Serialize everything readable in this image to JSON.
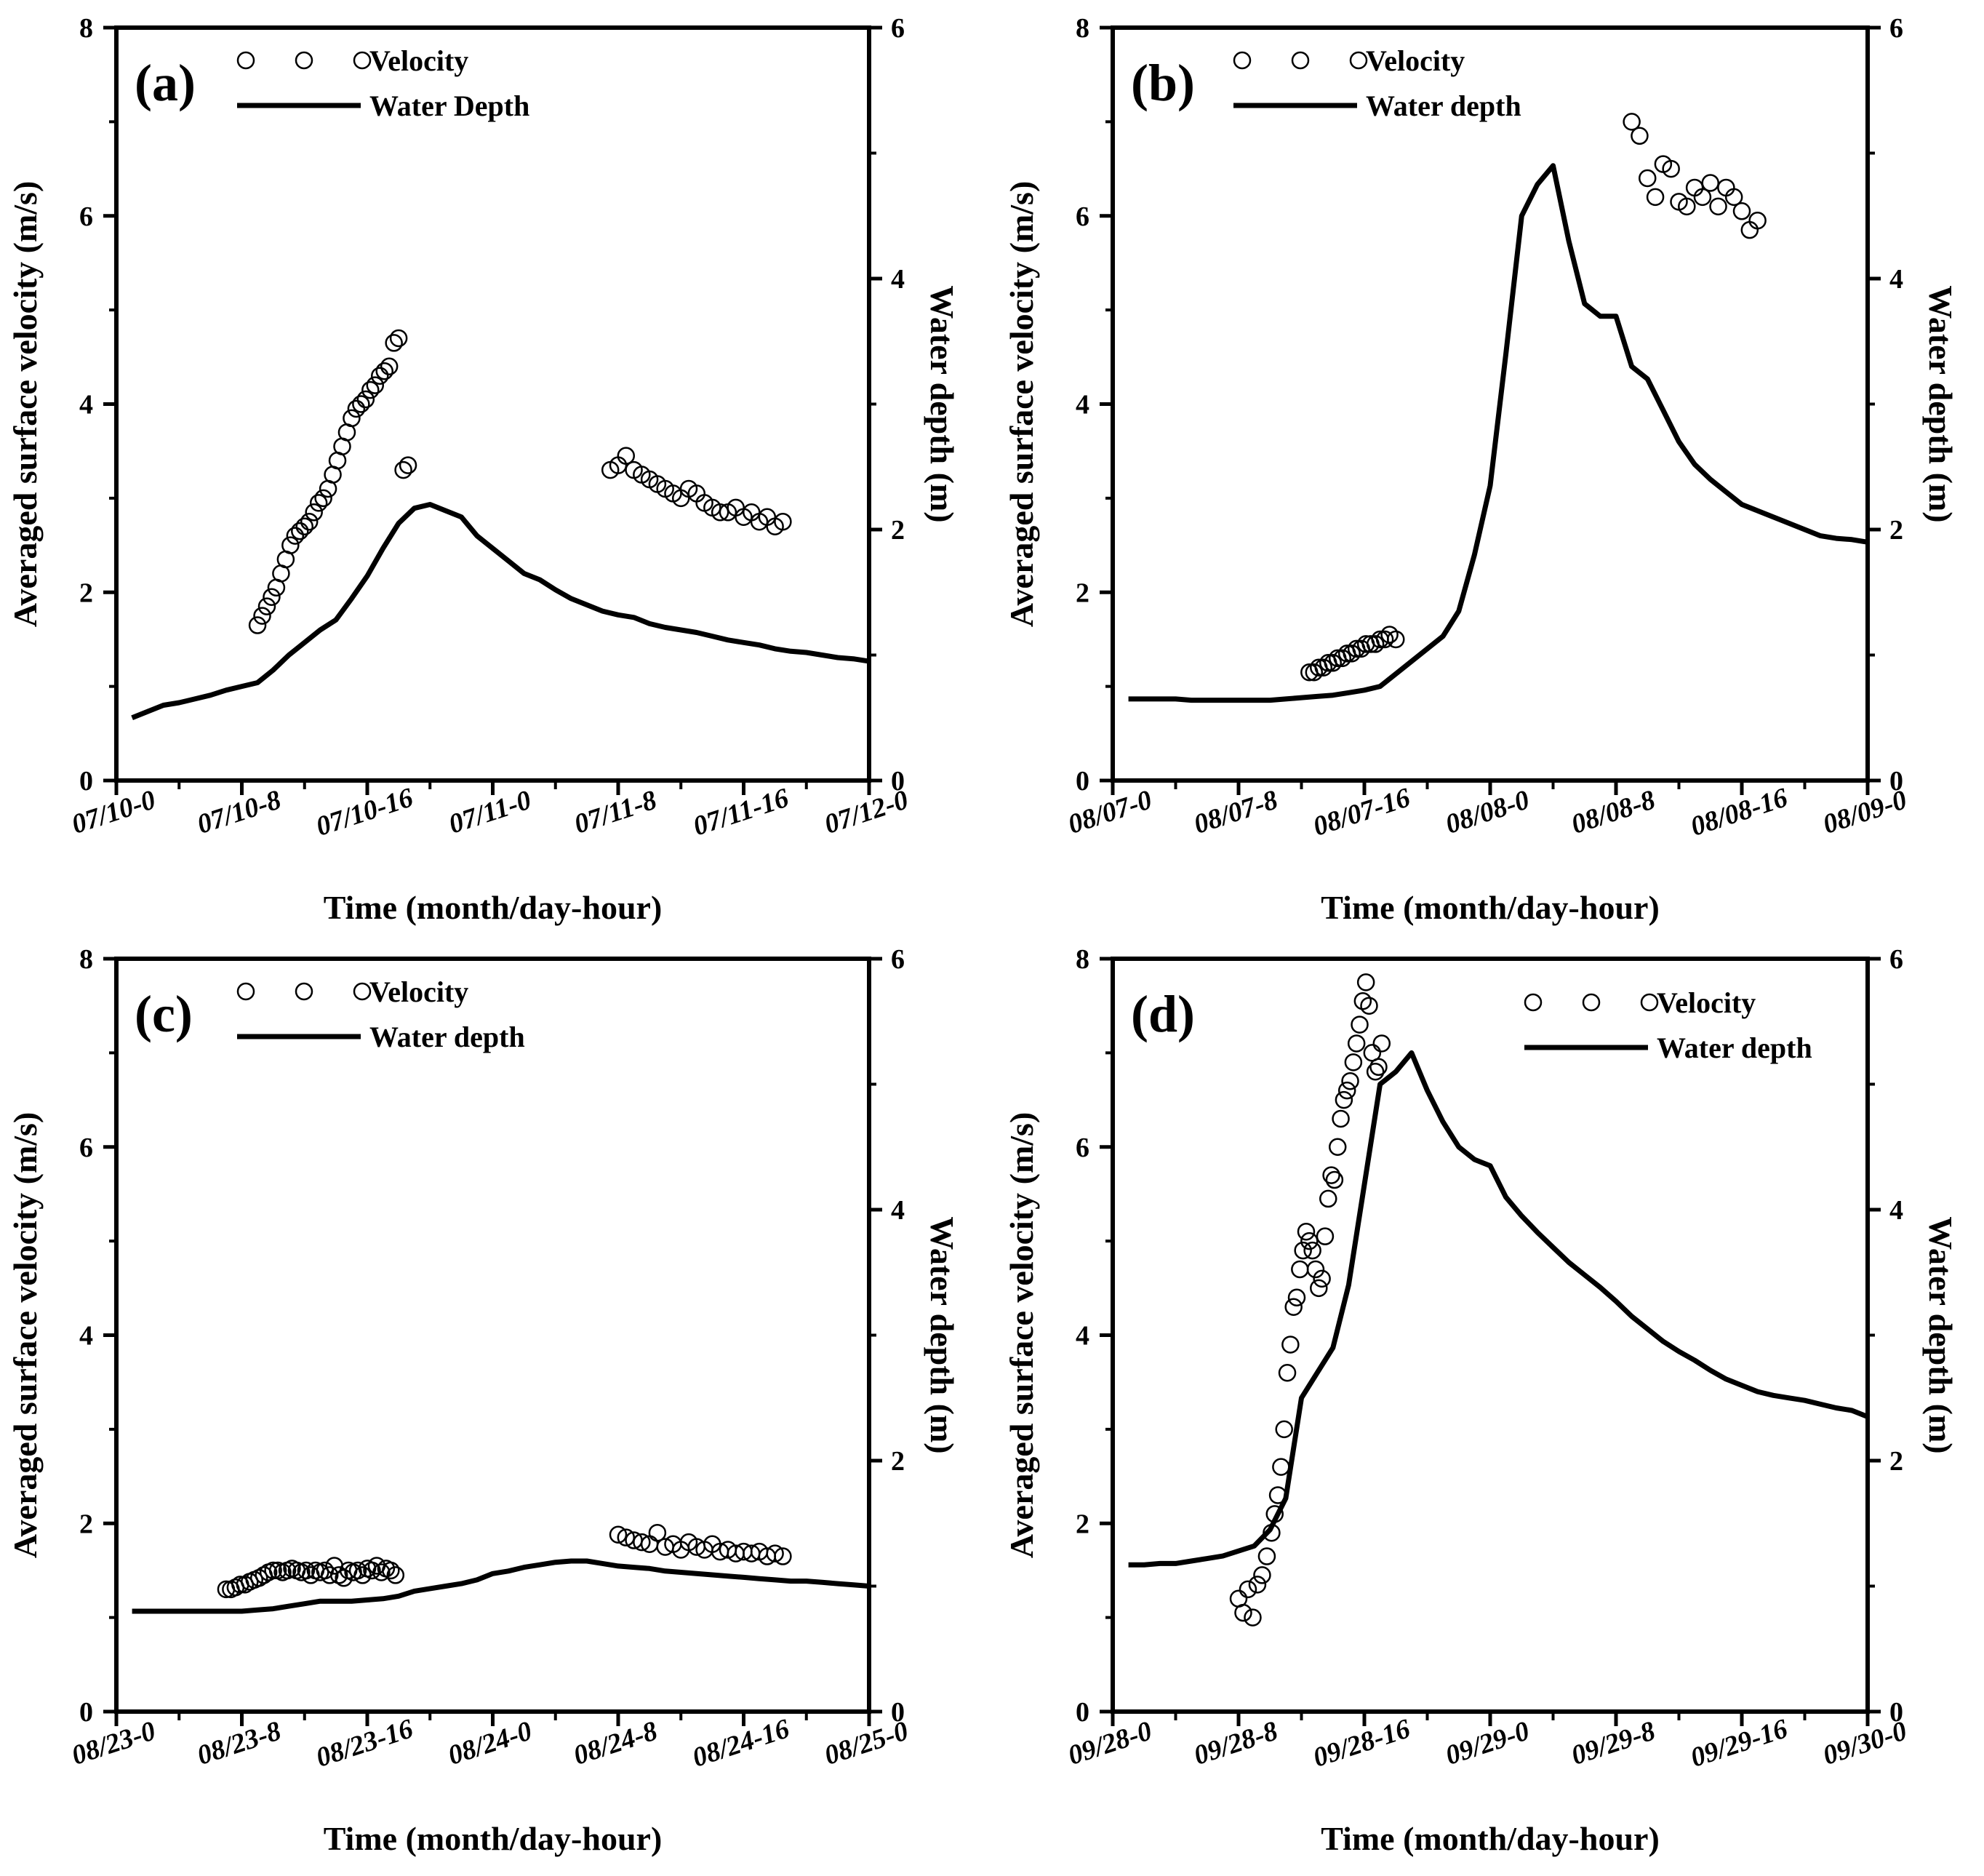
{
  "figure": {
    "background": "#ffffff",
    "ink": "#000000"
  },
  "chart_data": [
    {
      "type": "scatter+line",
      "panel": "(a)",
      "legend": {
        "velocity": "Velocity",
        "depth": "Water Depth"
      },
      "xlabel": "Time (month/day-hour)",
      "ylabel_left": "Averaged surface velocity (m/s)",
      "ylabel_right": "Water depth (m)",
      "xlim": [
        0,
        48
      ],
      "ylim_left": [
        0,
        8
      ],
      "ylim_right": [
        0,
        6
      ],
      "x_ticks": [
        0,
        8,
        16,
        24,
        32,
        40,
        48
      ],
      "x_tick_labels": [
        "07/10-0",
        "07/10-8",
        "07/10-16",
        "07/11-0",
        "07/11-8",
        "07/11-16",
        "07/12-0"
      ],
      "y_left_ticks": [
        "0",
        "2",
        "4",
        "6",
        "8"
      ],
      "y_right_ticks": [
        "0",
        "2",
        "4",
        "6"
      ],
      "velocity": {
        "x": [
          9.0,
          9.3,
          9.6,
          9.9,
          10.2,
          10.5,
          10.8,
          11.1,
          11.4,
          11.7,
          12.0,
          12.3,
          12.6,
          12.9,
          13.2,
          13.5,
          13.8,
          14.1,
          14.4,
          14.7,
          15.0,
          15.3,
          15.6,
          15.9,
          16.2,
          16.5,
          16.8,
          17.1,
          17.4,
          17.7,
          18.0,
          18.3,
          18.6,
          31.5,
          32.0,
          32.5,
          33.0,
          33.5,
          34.0,
          34.5,
          35.0,
          35.5,
          36.0,
          36.5,
          37.0,
          37.5,
          38.0,
          38.5,
          39.0,
          39.5,
          40.0,
          40.5,
          41.0,
          41.5,
          42.0,
          42.5
        ],
        "y": [
          1.65,
          1.75,
          1.85,
          1.95,
          2.05,
          2.2,
          2.35,
          2.5,
          2.6,
          2.65,
          2.7,
          2.75,
          2.85,
          2.95,
          3.0,
          3.1,
          3.25,
          3.4,
          3.55,
          3.7,
          3.85,
          3.95,
          4.0,
          4.05,
          4.15,
          4.2,
          4.3,
          4.35,
          4.4,
          4.65,
          4.7,
          3.3,
          3.35,
          3.3,
          3.35,
          3.45,
          3.3,
          3.25,
          3.2,
          3.15,
          3.1,
          3.05,
          3.0,
          3.1,
          3.05,
          2.95,
          2.9,
          2.85,
          2.85,
          2.9,
          2.8,
          2.85,
          2.75,
          2.8,
          2.7,
          2.75
        ]
      },
      "depth": {
        "x": [
          1,
          2,
          3,
          4,
          5,
          6,
          7,
          8,
          9,
          10,
          11,
          12,
          13,
          14,
          15,
          16,
          17,
          18,
          19,
          20,
          21,
          22,
          23,
          24,
          25,
          26,
          27,
          28,
          29,
          30,
          31,
          32,
          33,
          34,
          35,
          36,
          37,
          38,
          39,
          40,
          41,
          42,
          43,
          44,
          45,
          46,
          47,
          48
        ],
        "y": [
          0.5,
          0.55,
          0.6,
          0.62,
          0.65,
          0.68,
          0.72,
          0.75,
          0.78,
          0.88,
          1.0,
          1.1,
          1.2,
          1.28,
          1.45,
          1.63,
          1.85,
          2.05,
          2.17,
          2.2,
          2.15,
          2.1,
          1.95,
          1.85,
          1.75,
          1.65,
          1.6,
          1.52,
          1.45,
          1.4,
          1.35,
          1.32,
          1.3,
          1.25,
          1.22,
          1.2,
          1.18,
          1.15,
          1.12,
          1.1,
          1.08,
          1.05,
          1.03,
          1.02,
          1.0,
          0.98,
          0.97,
          0.95
        ]
      }
    },
    {
      "type": "scatter+line",
      "panel": "(b)",
      "legend": {
        "velocity": "Velocity",
        "depth": "Water depth"
      },
      "xlabel": "Time (month/day-hour)",
      "ylabel_left": "Averaged surface velocity (m/s)",
      "ylabel_right": "Water depth (m)",
      "xlim": [
        0,
        48
      ],
      "ylim_left": [
        0,
        8
      ],
      "ylim_right": [
        0,
        6
      ],
      "x_ticks": [
        0,
        8,
        16,
        24,
        32,
        40,
        48
      ],
      "x_tick_labels": [
        "08/07-0",
        "08/07-8",
        "08/07-16",
        "08/08-0",
        "08/08-8",
        "08/08-16",
        "08/09-0"
      ],
      "y_left_ticks": [
        "0",
        "2",
        "4",
        "6",
        "8"
      ],
      "y_right_ticks": [
        "0",
        "2",
        "4",
        "6"
      ],
      "velocity": {
        "x": [
          12.5,
          12.8,
          13.1,
          13.4,
          13.7,
          14.0,
          14.3,
          14.6,
          14.9,
          15.2,
          15.5,
          15.8,
          16.1,
          16.4,
          16.7,
          17.0,
          17.3,
          17.6,
          18.0,
          33.0,
          33.5,
          34.0,
          34.5,
          35.0,
          35.5,
          36.0,
          36.5,
          37.0,
          37.5,
          38.0,
          38.5,
          39.0,
          39.5,
          40.0,
          40.5,
          41.0
        ],
        "y": [
          1.15,
          1.15,
          1.2,
          1.2,
          1.25,
          1.25,
          1.3,
          1.3,
          1.35,
          1.35,
          1.4,
          1.4,
          1.45,
          1.45,
          1.45,
          1.5,
          1.5,
          1.55,
          1.5,
          7.0,
          6.85,
          6.4,
          6.2,
          6.55,
          6.5,
          6.15,
          6.1,
          6.3,
          6.2,
          6.35,
          6.1,
          6.3,
          6.2,
          6.05,
          5.85,
          5.95
        ]
      },
      "depth": {
        "x": [
          1,
          2,
          3,
          4,
          5,
          6,
          7,
          8,
          9,
          10,
          11,
          12,
          13,
          14,
          15,
          16,
          17,
          18,
          19,
          20,
          21,
          22,
          23,
          24,
          25,
          26,
          27,
          28,
          29,
          30,
          31,
          32,
          33,
          34,
          35,
          36,
          37,
          38,
          39,
          40,
          41,
          42,
          43,
          44,
          45,
          46,
          47,
          48
        ],
        "y": [
          0.65,
          0.65,
          0.65,
          0.65,
          0.64,
          0.64,
          0.64,
          0.64,
          0.64,
          0.64,
          0.65,
          0.66,
          0.67,
          0.68,
          0.7,
          0.72,
          0.75,
          0.85,
          0.95,
          1.05,
          1.15,
          1.35,
          1.8,
          2.35,
          3.4,
          4.5,
          4.75,
          4.9,
          4.3,
          3.8,
          3.7,
          3.7,
          3.3,
          3.2,
          2.95,
          2.7,
          2.52,
          2.4,
          2.3,
          2.2,
          2.15,
          2.1,
          2.05,
          2.0,
          1.95,
          1.93,
          1.92,
          1.9
        ]
      }
    },
    {
      "type": "scatter+line",
      "panel": "(c)",
      "legend": {
        "velocity": "Velocity",
        "depth": "Water depth"
      },
      "xlabel": "Time (month/day-hour)",
      "ylabel_left": "Averaged surface velocity (m/s)",
      "ylabel_right": "Water depth (m)",
      "xlim": [
        0,
        48
      ],
      "ylim_left": [
        0,
        8
      ],
      "ylim_right": [
        0,
        6
      ],
      "x_ticks": [
        0,
        8,
        16,
        24,
        32,
        40,
        48
      ],
      "x_tick_labels": [
        "08/23-0",
        "08/23-8",
        "08/23-16",
        "08/24-0",
        "08/24-8",
        "08/24-16",
        "08/25-0"
      ],
      "y_left_ticks": [
        "0",
        "2",
        "4",
        "6",
        "8"
      ],
      "y_right_ticks": [
        "0",
        "2",
        "4",
        "6"
      ],
      "velocity": {
        "x": [
          7.0,
          7.3,
          7.6,
          7.9,
          8.2,
          8.5,
          8.8,
          9.1,
          9.4,
          9.7,
          10.0,
          10.3,
          10.6,
          10.9,
          11.2,
          11.5,
          11.8,
          12.1,
          12.4,
          12.7,
          13.0,
          13.3,
          13.6,
          13.9,
          14.2,
          14.5,
          14.8,
          15.1,
          15.4,
          15.7,
          16.0,
          16.3,
          16.6,
          16.9,
          17.2,
          17.5,
          17.8,
          32.0,
          32.5,
          33.0,
          33.5,
          34.0,
          34.5,
          35.0,
          35.5,
          36.0,
          36.5,
          37.0,
          37.5,
          38.0,
          38.5,
          39.0,
          39.5,
          40.0,
          40.5,
          41.0,
          41.5,
          42.0,
          42.5
        ],
        "y": [
          1.3,
          1.3,
          1.32,
          1.35,
          1.35,
          1.38,
          1.4,
          1.42,
          1.45,
          1.48,
          1.5,
          1.5,
          1.48,
          1.5,
          1.52,
          1.5,
          1.48,
          1.5,
          1.45,
          1.5,
          1.48,
          1.5,
          1.45,
          1.55,
          1.45,
          1.42,
          1.5,
          1.48,
          1.5,
          1.45,
          1.52,
          1.5,
          1.55,
          1.48,
          1.52,
          1.5,
          1.45,
          1.88,
          1.85,
          1.82,
          1.8,
          1.78,
          1.9,
          1.75,
          1.78,
          1.72,
          1.8,
          1.75,
          1.72,
          1.78,
          1.7,
          1.72,
          1.68,
          1.7,
          1.68,
          1.7,
          1.65,
          1.68,
          1.65
        ]
      },
      "depth": {
        "x": [
          1,
          2,
          3,
          4,
          5,
          6,
          7,
          8,
          9,
          10,
          11,
          12,
          13,
          14,
          15,
          16,
          17,
          18,
          19,
          20,
          21,
          22,
          23,
          24,
          25,
          26,
          27,
          28,
          29,
          30,
          31,
          32,
          33,
          34,
          35,
          36,
          37,
          38,
          39,
          40,
          41,
          42,
          43,
          44,
          45,
          46,
          47,
          48
        ],
        "y": [
          0.8,
          0.8,
          0.8,
          0.8,
          0.8,
          0.8,
          0.8,
          0.8,
          0.81,
          0.82,
          0.84,
          0.86,
          0.88,
          0.88,
          0.88,
          0.89,
          0.9,
          0.92,
          0.96,
          0.98,
          1.0,
          1.02,
          1.05,
          1.1,
          1.12,
          1.15,
          1.17,
          1.19,
          1.2,
          1.2,
          1.18,
          1.16,
          1.15,
          1.14,
          1.12,
          1.11,
          1.1,
          1.09,
          1.08,
          1.07,
          1.06,
          1.05,
          1.04,
          1.04,
          1.03,
          1.02,
          1.01,
          1.0
        ]
      }
    },
    {
      "type": "scatter+line",
      "panel": "(d)",
      "legend": {
        "velocity": "Velocity",
        "depth": "Water depth"
      },
      "xlabel": "Time (month/day-hour)",
      "ylabel_left": "Averaged surface velocity (m/s)",
      "ylabel_right": "Water depth (m)",
      "xlim": [
        0,
        48
      ],
      "ylim_left": [
        0,
        8
      ],
      "ylim_right": [
        0,
        6
      ],
      "x_ticks": [
        0,
        8,
        16,
        24,
        32,
        40,
        48
      ],
      "x_tick_labels": [
        "09/28-0",
        "09/28-8",
        "09/28-16",
        "09/29-0",
        "09/29-8",
        "09/29-16",
        "09/30-0"
      ],
      "y_left_ticks": [
        "0",
        "2",
        "4",
        "6",
        "8"
      ],
      "y_right_ticks": [
        "0",
        "2",
        "4",
        "6"
      ],
      "velocity": {
        "x": [
          8.0,
          8.3,
          8.6,
          8.9,
          9.2,
          9.5,
          9.8,
          10.1,
          10.3,
          10.5,
          10.7,
          10.9,
          11.1,
          11.3,
          11.5,
          11.7,
          11.9,
          12.1,
          12.3,
          12.5,
          12.7,
          12.9,
          13.1,
          13.3,
          13.5,
          13.7,
          13.9,
          14.1,
          14.3,
          14.5,
          14.7,
          14.9,
          15.1,
          15.3,
          15.5,
          15.7,
          15.9,
          16.1,
          16.3,
          16.5,
          16.7,
          16.9,
          17.1
        ],
        "y": [
          1.2,
          1.05,
          1.3,
          1.0,
          1.35,
          1.45,
          1.65,
          1.9,
          2.1,
          2.3,
          2.6,
          3.0,
          3.6,
          3.9,
          4.3,
          4.4,
          4.7,
          4.9,
          5.1,
          5.0,
          4.9,
          4.7,
          4.5,
          4.6,
          5.05,
          5.45,
          5.7,
          5.65,
          6.0,
          6.3,
          6.5,
          6.6,
          6.7,
          6.9,
          7.1,
          7.3,
          7.55,
          7.75,
          7.5,
          7.0,
          6.8,
          6.85,
          7.1
        ]
      },
      "depth": {
        "x": [
          1,
          2,
          3,
          4,
          5,
          6,
          7,
          8,
          9,
          10,
          11,
          12,
          13,
          14,
          15,
          16,
          17,
          18,
          19,
          20,
          21,
          22,
          23,
          24,
          25,
          26,
          27,
          28,
          29,
          30,
          31,
          32,
          33,
          34,
          35,
          36,
          37,
          38,
          39,
          40,
          41,
          42,
          43,
          44,
          45,
          46,
          47,
          48
        ],
        "y": [
          1.17,
          1.17,
          1.18,
          1.18,
          1.2,
          1.22,
          1.24,
          1.28,
          1.32,
          1.45,
          1.7,
          2.5,
          2.7,
          2.9,
          3.4,
          4.2,
          5.0,
          5.1,
          5.25,
          4.95,
          4.7,
          4.5,
          4.4,
          4.35,
          4.1,
          3.95,
          3.82,
          3.7,
          3.58,
          3.48,
          3.38,
          3.27,
          3.15,
          3.05,
          2.95,
          2.87,
          2.8,
          2.72,
          2.65,
          2.6,
          2.55,
          2.52,
          2.5,
          2.48,
          2.45,
          2.42,
          2.4,
          2.35
        ]
      }
    }
  ]
}
